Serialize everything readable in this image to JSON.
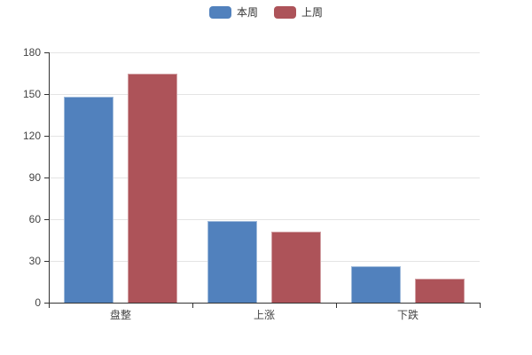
{
  "chart_data": {
    "type": "bar",
    "title": "",
    "xlabel": "",
    "ylabel": "",
    "categories": [
      "盘整",
      "上涨",
      "下跌"
    ],
    "series": [
      {
        "name": "本周",
        "color": "#5181bd",
        "values": [
          148,
          59,
          26
        ]
      },
      {
        "name": "上周",
        "color": "#ad5359",
        "values": [
          165,
          51,
          17
        ]
      }
    ],
    "ylim": [
      0,
      180
    ],
    "y_ticks": [
      0,
      30,
      60,
      90,
      120,
      150,
      180
    ],
    "grid": true,
    "legend_position": "top-center",
    "colors": {
      "axis": "#333333",
      "gridline": "#e4e4e4",
      "label_text": "#444444"
    }
  }
}
